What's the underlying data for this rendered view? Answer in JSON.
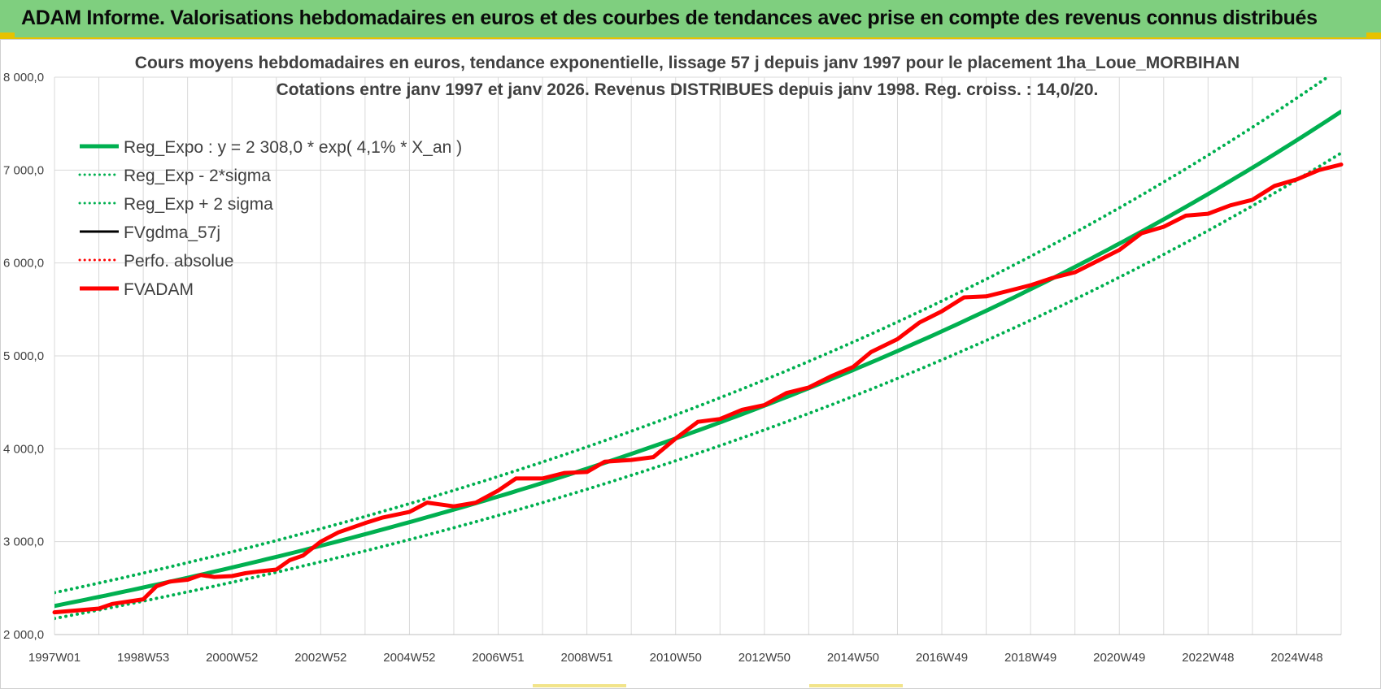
{
  "header": {
    "title": "ADAM Informe. Valorisations hebdomadaires en euros et des courbes de tendances avec prise en compte des revenus connus distribués"
  },
  "colors": {
    "banner": "#7fcf7f",
    "accent": "#e6c200",
    "green": "#00b050",
    "red": "#ff0000",
    "black": "#000000"
  },
  "chart_data": {
    "type": "line",
    "title_line1": "Cours moyens hebdomadaires en euros, tendance exponentielle, lissage 57 j depuis janv 1997  pour le  placement 1ha_Loue_MORBIHAN",
    "title_line2": "Cotations entre janv 1997 et janv 2026. Revenus DISTRIBUES depuis janv 1998.  Reg. croiss. : 14,0/20.",
    "xlabel": "",
    "ylabel": "",
    "xlim": [
      1997.0,
      2026.0
    ],
    "ylim": [
      2000,
      8000
    ],
    "y_ticks": [
      {
        "value": 2000,
        "label": "2 000,0"
      },
      {
        "value": 3000,
        "label": "3 000,0"
      },
      {
        "value": 4000,
        "label": "4 000,0"
      },
      {
        "value": 5000,
        "label": "5 000,0"
      },
      {
        "value": 6000,
        "label": "6 000,0"
      },
      {
        "value": 7000,
        "label": "7 000,0"
      },
      {
        "value": 8000,
        "label": "8 000,0"
      }
    ],
    "x_ticks": [
      {
        "value": 1997.0,
        "label": "1997W01"
      },
      {
        "value": 1999.0,
        "label": "1998W53"
      },
      {
        "value": 2001.0,
        "label": "2000W52"
      },
      {
        "value": 2003.0,
        "label": "2002W52"
      },
      {
        "value": 2005.0,
        "label": "2004W52"
      },
      {
        "value": 2007.0,
        "label": "2006W51"
      },
      {
        "value": 2009.0,
        "label": "2008W51"
      },
      {
        "value": 2011.0,
        "label": "2010W50"
      },
      {
        "value": 2013.0,
        "label": "2012W50"
      },
      {
        "value": 2015.0,
        "label": "2014W50"
      },
      {
        "value": 2017.0,
        "label": "2016W49"
      },
      {
        "value": 2019.0,
        "label": "2018W49"
      },
      {
        "value": 2021.0,
        "label": "2020W49"
      },
      {
        "value": 2023.0,
        "label": "2022W48"
      },
      {
        "value": 2025.0,
        "label": "2024W48"
      }
    ],
    "regression": {
      "a": 2308.0,
      "rate": 0.04123,
      "sigma_factor": 1.062
    },
    "legend": [
      {
        "label": "Reg_Expo : y = 2 308,0 * exp( 4,1% *  X_an )",
        "color": "#00b050",
        "style": "solid",
        "width": 5
      },
      {
        "label": "Reg_Exp - 2*sigma",
        "color": "#00b050",
        "style": "dotted",
        "width": 3
      },
      {
        "label": "Reg_Exp + 2 sigma",
        "color": "#00b050",
        "style": "dotted",
        "width": 3
      },
      {
        "label": "FVgdma_57j",
        "color": "#000000",
        "style": "solid",
        "width": 3
      },
      {
        "label": "Perfo. absolue",
        "color": "#ff0000",
        "style": "dotted",
        "width": 3
      },
      {
        "label": "FVADAM",
        "color": "#ff0000",
        "style": "solid",
        "width": 5
      }
    ],
    "series": [
      {
        "name": "Reg_Expo",
        "x": [
          1997.0,
          2026.0
        ],
        "values": [
          2308.0,
          7640.0
        ]
      },
      {
        "name": "Reg_Exp - 2*sigma",
        "x": [
          1997.0,
          2026.0
        ],
        "values": [
          2170.0,
          7170.0
        ]
      },
      {
        "name": "Reg_Exp + 2 sigma",
        "x": [
          1997.0,
          2025.8
        ],
        "values": [
          2450.0,
          8000.0
        ]
      },
      {
        "name": "FVADAM",
        "x": [
          1997.0,
          1998.0,
          1998.3,
          1999.0,
          1999.3,
          1999.6,
          2000.0,
          2000.3,
          2000.6,
          2001.0,
          2001.3,
          2001.6,
          2002.0,
          2002.3,
          2002.6,
          2003.0,
          2003.4,
          2004.0,
          2004.4,
          2005.0,
          2005.4,
          2006.0,
          2006.5,
          2007.0,
          2007.4,
          2008.0,
          2008.5,
          2009.0,
          2009.4,
          2010.0,
          2010.5,
          2011.0,
          2011.5,
          2012.0,
          2012.5,
          2013.0,
          2013.5,
          2014.0,
          2014.5,
          2015.0,
          2015.4,
          2016.0,
          2016.5,
          2017.0,
          2017.5,
          2018.0,
          2018.5,
          2019.0,
          2019.5,
          2020.0,
          2020.5,
          2021.0,
          2021.5,
          2022.0,
          2022.5,
          2023.0,
          2023.5,
          2024.0,
          2024.5,
          2025.0,
          2025.5,
          2026.0
        ],
        "values": [
          2240,
          2280,
          2330,
          2380,
          2520,
          2570,
          2590,
          2640,
          2620,
          2630,
          2660,
          2680,
          2700,
          2800,
          2850,
          3000,
          3100,
          3200,
          3260,
          3320,
          3420,
          3380,
          3420,
          3550,
          3680,
          3680,
          3740,
          3750,
          3860,
          3880,
          3910,
          4110,
          4290,
          4320,
          4420,
          4470,
          4600,
          4660,
          4780,
          4880,
          5040,
          5180,
          5360,
          5480,
          5630,
          5640,
          5700,
          5760,
          5840,
          5900,
          6020,
          6140,
          6320,
          6390,
          6510,
          6530,
          6620,
          6680,
          6830,
          6900,
          7000,
          7060
        ]
      }
    ]
  }
}
